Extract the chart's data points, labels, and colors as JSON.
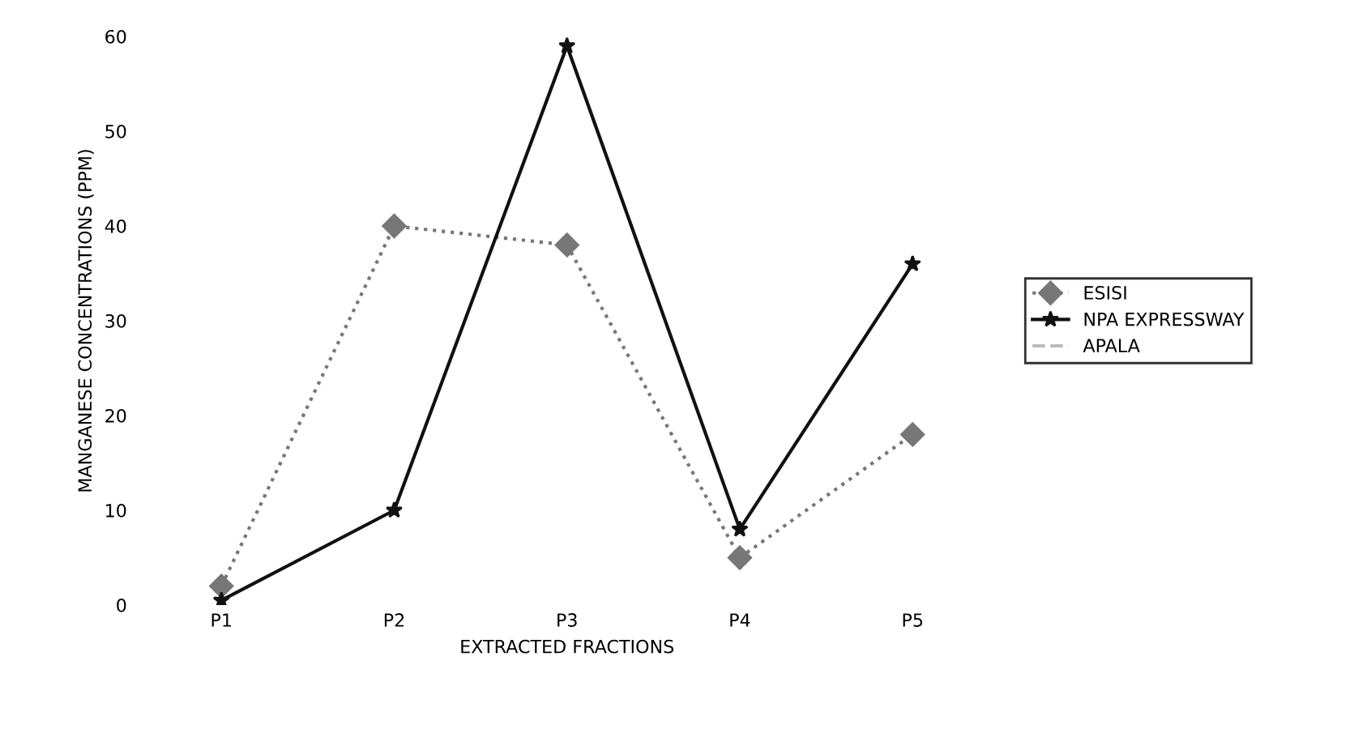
{
  "chart_data": {
    "type": "line",
    "xlabel": "EXTRACTED FRACTIONS",
    "ylabel": "MANGANESE CONCENTRATIONS (PPM)",
    "categories": [
      "P1",
      "P2",
      "P3",
      "P4",
      "P5"
    ],
    "series": [
      {
        "name": "ESISI",
        "color": "#777777",
        "marker": "diamond",
        "line_style": "dotted",
        "values": [
          2,
          40,
          38,
          5,
          18
        ]
      },
      {
        "name": "NPA EXPRESSWAY",
        "color": "#111111",
        "marker": "star",
        "line_style": "solid",
        "values": [
          0.5,
          10,
          59,
          8,
          36
        ]
      },
      {
        "name": "APALA",
        "color": "#bbbbbb",
        "marker": "none",
        "line_style": "dashed",
        "values": [
          null,
          null,
          null,
          null,
          null
        ]
      }
    ],
    "ylim": [
      0,
      60
    ],
    "yticks": [
      0,
      10,
      20,
      30,
      40,
      50,
      60
    ],
    "grid": false,
    "legend": "right"
  }
}
